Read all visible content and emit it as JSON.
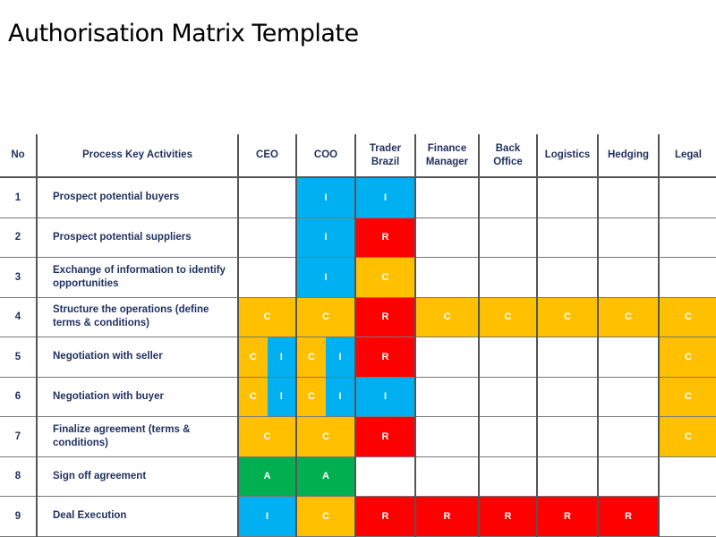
{
  "title": "Authorisation Matrix Template",
  "colors": {
    "I": "#00b0f0",
    "R": "#ff0000",
    "C": "#ffc000",
    "A": "#00b050"
  },
  "headers": [
    "No",
    "Process Key Activities",
    "CEO",
    "COO",
    "Trader Brazil",
    "Finance Manager",
    "Back Office",
    "Logistics",
    "Hedging",
    "Legal"
  ],
  "rows": [
    {
      "no": "1",
      "activity": "Prospect potential buyers",
      "cells": [
        "",
        "I",
        "I",
        "",
        "",
        "",
        "",
        ""
      ]
    },
    {
      "no": "2",
      "activity": "Prospect potential suppliers",
      "cells": [
        "",
        "I",
        "R",
        "",
        "",
        "",
        "",
        ""
      ]
    },
    {
      "no": "3",
      "activity": "Exchange of information to identify opportunities",
      "cells": [
        "",
        "I",
        "C",
        "",
        "",
        "",
        "",
        ""
      ]
    },
    {
      "no": "4",
      "activity": "Structure the operations  (define terms & conditions)",
      "cells": [
        "C",
        "C",
        "R",
        "C",
        "C",
        "C",
        "C",
        "C"
      ]
    },
    {
      "no": "5",
      "activity": "Negotiation with seller",
      "cells": [
        [
          "C",
          "I"
        ],
        [
          "C",
          "I"
        ],
        "R",
        "",
        "",
        "",
        "",
        "C"
      ]
    },
    {
      "no": "6",
      "activity": "Negotiation with buyer",
      "cells": [
        [
          "C",
          "I"
        ],
        [
          "C",
          "I"
        ],
        "I",
        "",
        "",
        "",
        "",
        "C"
      ]
    },
    {
      "no": "7",
      "activity": "Finalize agreement (terms & conditions)",
      "cells": [
        "C",
        "C",
        "R",
        "",
        "",
        "",
        "",
        "C"
      ]
    },
    {
      "no": "8",
      "activity": "Sign off agreement",
      "cells": [
        "A",
        "A",
        "",
        "",
        "",
        "",
        "",
        ""
      ]
    },
    {
      "no": "9",
      "activity": "Deal Execution",
      "cells": [
        "I",
        "C",
        "R",
        "R",
        "R",
        "R",
        "R",
        ""
      ]
    }
  ]
}
